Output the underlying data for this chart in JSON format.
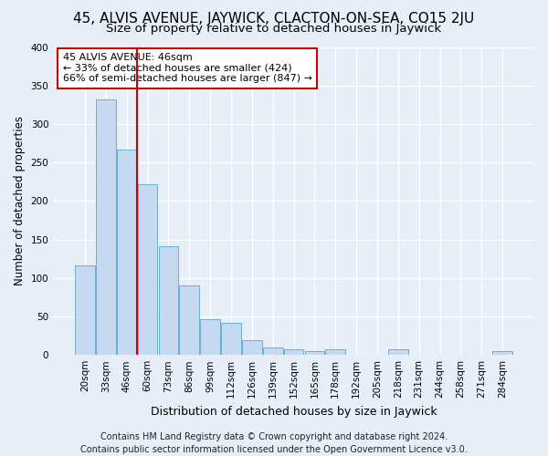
{
  "title": "45, ALVIS AVENUE, JAYWICK, CLACTON-ON-SEA, CO15 2JU",
  "subtitle": "Size of property relative to detached houses in Jaywick",
  "xlabel": "Distribution of detached houses by size in Jaywick",
  "ylabel": "Number of detached properties",
  "categories": [
    "20sqm",
    "33sqm",
    "46sqm",
    "60sqm",
    "73sqm",
    "86sqm",
    "99sqm",
    "112sqm",
    "126sqm",
    "139sqm",
    "152sqm",
    "165sqm",
    "178sqm",
    "192sqm",
    "205sqm",
    "218sqm",
    "231sqm",
    "244sqm",
    "258sqm",
    "271sqm",
    "284sqm"
  ],
  "values": [
    116,
    332,
    267,
    222,
    141,
    90,
    46,
    42,
    19,
    10,
    7,
    5,
    7,
    0,
    0,
    7,
    0,
    0,
    0,
    0,
    5
  ],
  "bar_fill_color": "#c5d9f0",
  "bar_edge_color": "#6baed6",
  "highlight_bar_index": 2,
  "highlight_line_color": "#cc0000",
  "annotation_text": "45 ALVIS AVENUE: 46sqm\n← 33% of detached houses are smaller (424)\n66% of semi-detached houses are larger (847) →",
  "annotation_box_facecolor": "#ffffff",
  "annotation_box_edgecolor": "#cc0000",
  "footer_line1": "Contains HM Land Registry data © Crown copyright and database right 2024.",
  "footer_line2": "Contains public sector information licensed under the Open Government Licence v3.0.",
  "ylim": [
    0,
    400
  ],
  "yticks": [
    0,
    50,
    100,
    150,
    200,
    250,
    300,
    350,
    400
  ],
  "title_fontsize": 11,
  "subtitle_fontsize": 9.5,
  "xlabel_fontsize": 9,
  "ylabel_fontsize": 8.5,
  "tick_fontsize": 7.5,
  "annot_fontsize": 8,
  "footer_fontsize": 7,
  "background_color": "#e8eef8",
  "axes_background_color": "#e8eef8"
}
